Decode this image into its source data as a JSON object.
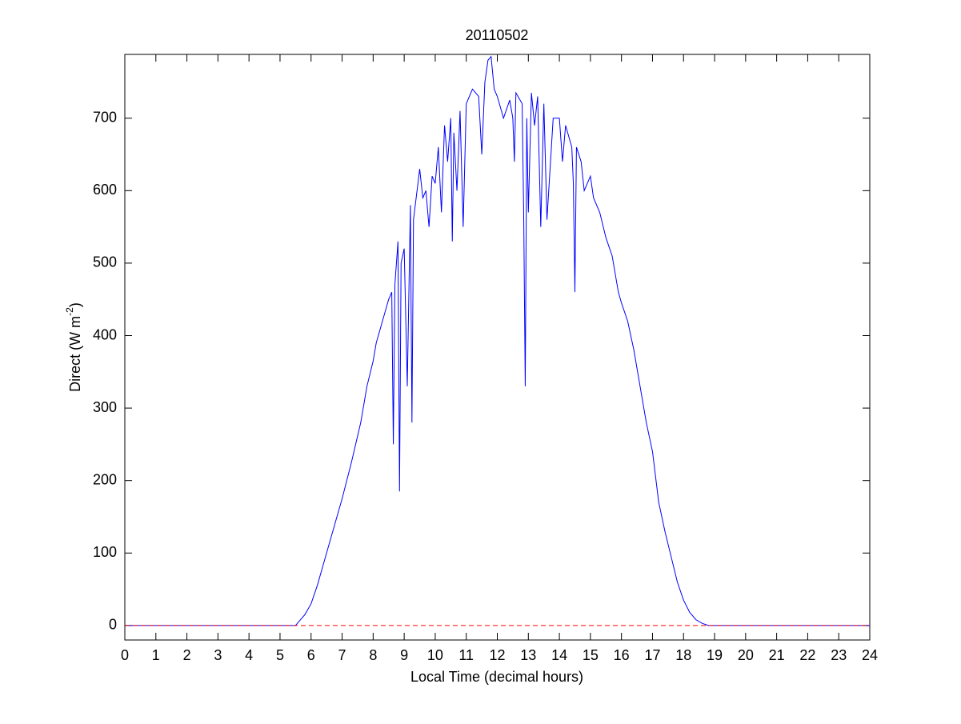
{
  "chart_data": {
    "type": "line",
    "title": "20110502",
    "xlabel": "Local Time (decimal hours)",
    "ylabel": {
      "text": "Direct (W m",
      "superscript": "-2",
      "suffix": ")"
    },
    "x": [
      0,
      5.5,
      5.6,
      5.8,
      6.0,
      6.2,
      6.5,
      6.8,
      7.0,
      7.3,
      7.6,
      7.8,
      8.0,
      8.1,
      8.3,
      8.5,
      8.6,
      8.65,
      8.7,
      8.8,
      8.85,
      8.9,
      9.0,
      9.1,
      9.2,
      9.25,
      9.3,
      9.5,
      9.6,
      9.7,
      9.8,
      9.9,
      10.0,
      10.1,
      10.2,
      10.3,
      10.4,
      10.5,
      10.55,
      10.6,
      10.7,
      10.8,
      10.9,
      11.0,
      11.2,
      11.4,
      11.5,
      11.6,
      11.7,
      11.8,
      11.9,
      12.0,
      12.2,
      12.4,
      12.5,
      12.55,
      12.6,
      12.8,
      12.85,
      12.9,
      12.95,
      13.0,
      13.1,
      13.2,
      13.3,
      13.4,
      13.5,
      13.6,
      13.8,
      14.0,
      14.1,
      14.2,
      14.4,
      14.45,
      14.5,
      14.55,
      14.7,
      14.8,
      15.0,
      15.1,
      15.3,
      15.5,
      15.7,
      15.9,
      16.0,
      16.2,
      16.4,
      16.6,
      16.8,
      17.0,
      17.2,
      17.4,
      17.6,
      17.8,
      18.0,
      18.2,
      18.4,
      18.6,
      18.8,
      24
    ],
    "series": [
      {
        "color": "#0000ff",
        "values": [
          0,
          0,
          5,
          15,
          30,
          55,
          100,
          145,
          175,
          225,
          280,
          330,
          365,
          390,
          420,
          450,
          460,
          250,
          470,
          530,
          185,
          500,
          520,
          330,
          580,
          280,
          560,
          630,
          590,
          600,
          550,
          620,
          610,
          660,
          570,
          690,
          640,
          700,
          530,
          680,
          600,
          710,
          550,
          720,
          740,
          730,
          650,
          750,
          780,
          785,
          740,
          730,
          700,
          725,
          700,
          640,
          735,
          720,
          570,
          330,
          700,
          570,
          735,
          690,
          730,
          550,
          720,
          560,
          700,
          700,
          640,
          690,
          660,
          610,
          460,
          660,
          640,
          600,
          620,
          590,
          570,
          535,
          510,
          460,
          445,
          420,
          380,
          330,
          280,
          240,
          170,
          130,
          95,
          60,
          35,
          18,
          8,
          3,
          0,
          0
        ]
      }
    ],
    "reference_line": {
      "y": 0,
      "color": "#ff0000",
      "dashed": true
    },
    "xlim": [
      0,
      24
    ],
    "xticks": [
      0,
      1,
      2,
      3,
      4,
      5,
      6,
      7,
      8,
      9,
      10,
      11,
      12,
      13,
      14,
      15,
      16,
      17,
      18,
      19,
      20,
      21,
      22,
      23,
      24
    ],
    "ylim": [
      -20,
      788
    ],
    "yticks": [
      0,
      100,
      200,
      300,
      400,
      500,
      600,
      700
    ]
  }
}
